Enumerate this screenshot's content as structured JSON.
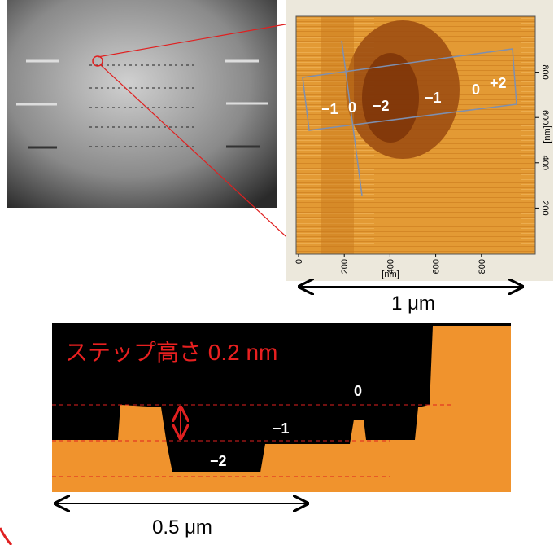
{
  "afm_image": {
    "labels": [
      "−1",
      "0",
      "−2",
      "−1",
      "0",
      "+2"
    ],
    "x_ticks": [
      0,
      200,
      400,
      600,
      800
    ],
    "y_ticks": [
      200,
      400,
      600,
      800
    ],
    "x_unit": "[nm]",
    "y_unit": "[nm]"
  },
  "top_scale_bar": "1 μm",
  "profile": {
    "title": "ステップ高さ 0.2 nm",
    "labels": [
      "0",
      "−1",
      "−2"
    ],
    "scale_bar": "0.5 μm"
  }
}
